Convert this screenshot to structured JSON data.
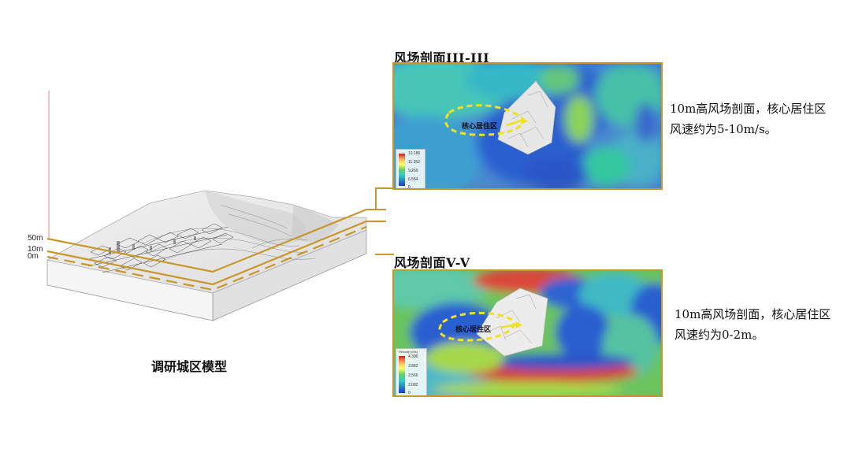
{
  "model": {
    "caption": "调研城区模型",
    "levels": [
      "50m",
      "10m",
      "0m"
    ]
  },
  "panels": [
    {
      "title": "风场剖面III-III",
      "zone_label": "核心居住区",
      "note": "10m高风场剖面，核心居住区风速约为5-10m/s。",
      "legend": {
        "title": "",
        "ticks": [
          "13.186",
          "11.352",
          "9.269",
          "6.554",
          "0"
        ]
      }
    },
    {
      "title": "风场剖面V-V",
      "zone_label": "核心居住区",
      "note": "10m高风场剖面，核心居住区风速约为0-2m。",
      "legend": {
        "title": "Velocity (m/s)",
        "ticks": [
          "4.390",
          "3.882",
          "2.566",
          "2.082",
          "0"
        ]
      }
    }
  ],
  "colors": {
    "connector": "#c8962a",
    "zone_outline": "#f2e21b"
  }
}
